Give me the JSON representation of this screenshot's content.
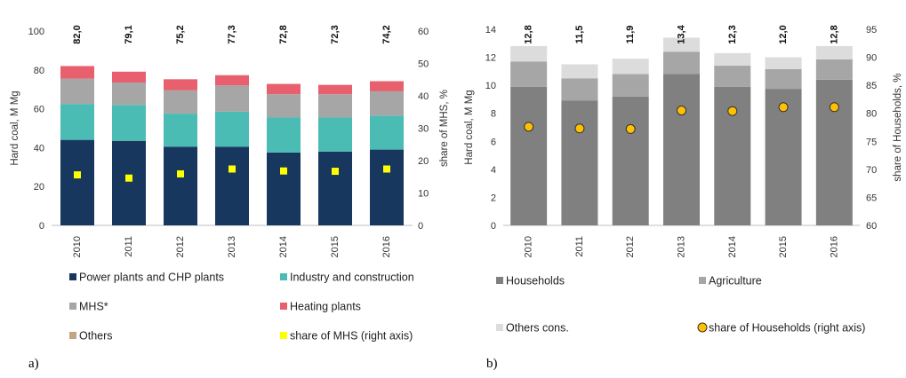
{
  "panels": {
    "a": {
      "label": "a)"
    },
    "b": {
      "label": "b)"
    }
  },
  "chart_data": [
    {
      "type": "bar",
      "stacked": true,
      "categories": [
        "2010",
        "2011",
        "2012",
        "2013",
        "2014",
        "2015",
        "2016"
      ],
      "ylabel": "Hard coal, M Mg",
      "ylim": [
        0,
        100
      ],
      "yticks": [
        "0",
        "20",
        "40",
        "60",
        "80",
        "100"
      ],
      "y2label": "share of MHS, %",
      "y2lim": [
        0,
        60
      ],
      "y2ticks": [
        "0",
        "10",
        "20",
        "30",
        "40",
        "50",
        "60"
      ],
      "series": [
        {
          "name": "Power plants and CHP plants",
          "color": "#17375e",
          "values": [
            44.0,
            43.5,
            40.5,
            40.5,
            37.5,
            38.0,
            39.0
          ]
        },
        {
          "name": "Industry and construction",
          "color": "#4bbcb4",
          "values": [
            18.5,
            18.5,
            17.0,
            18.0,
            18.0,
            17.5,
            17.5
          ]
        },
        {
          "name": "MHS*",
          "color": "#a6a6a6",
          "values": [
            13.0,
            11.5,
            12.0,
            13.5,
            12.0,
            12.0,
            12.5
          ]
        },
        {
          "name": "Heating plants",
          "color": "#e8606e",
          "values": [
            6.5,
            5.6,
            5.7,
            5.3,
            5.3,
            4.8,
            5.2
          ]
        },
        {
          "name": "Others",
          "color": "#c4a484",
          "values": [
            0,
            0,
            0,
            0,
            0,
            0,
            0
          ]
        }
      ],
      "totals": [
        "82,0",
        "79,1",
        "75,2",
        "77,3",
        "72,8",
        "72,3",
        "74,2"
      ],
      "line_series": {
        "name": "share of MHS (right axis)",
        "color": "#ffff00",
        "marker": "square",
        "axis": "right",
        "values": [
          15.6,
          14.6,
          15.9,
          17.4,
          16.8,
          16.7,
          17.4
        ]
      },
      "legend": [
        {
          "name": "Power plants and CHP plants",
          "color": "#17375e",
          "marker": "square"
        },
        {
          "name": "Industry and construction",
          "color": "#4bbcb4",
          "marker": "square"
        },
        {
          "name": "MHS*",
          "color": "#a6a6a6",
          "marker": "square"
        },
        {
          "name": "Heating plants",
          "color": "#e8606e",
          "marker": "square"
        },
        {
          "name": "Others",
          "color": "#c4a484",
          "marker": "square"
        },
        {
          "name": "share of MHS (right axis)",
          "color": "#ffff00",
          "marker": "square"
        }
      ],
      "legend_position": "bottom",
      "grid": false
    },
    {
      "type": "bar",
      "stacked": true,
      "categories": [
        "2010",
        "2011",
        "2012",
        "2013",
        "2014",
        "2015",
        "2016"
      ],
      "ylabel": "Hard coal, M Mg",
      "ylim": [
        0,
        14
      ],
      "yticks": [
        "0",
        "2",
        "4",
        "6",
        "8",
        "10",
        "12",
        "14"
      ],
      "y2label": "share of Households, %",
      "y2lim": [
        60,
        95
      ],
      "y2ticks": [
        "60",
        "65",
        "70",
        "75",
        "80",
        "85",
        "90",
        "95"
      ],
      "series": [
        {
          "name": "Households",
          "color": "#808080",
          "values": [
            9.9,
            8.9,
            9.2,
            10.8,
            9.9,
            9.75,
            10.4
          ]
        },
        {
          "name": "Agriculture",
          "color": "#a6a6a6",
          "values": [
            1.8,
            1.6,
            1.6,
            1.6,
            1.5,
            1.4,
            1.45
          ]
        },
        {
          "name": "Others cons.",
          "color": "#dcdcdc",
          "values": [
            1.1,
            1.0,
            1.1,
            1.0,
            0.9,
            0.85,
            0.95
          ]
        }
      ],
      "totals": [
        "12,8",
        "11,5",
        "11,9",
        "13,4",
        "12,3",
        "12,0",
        "12,8"
      ],
      "line_series": {
        "name": "share of Households (right axis)",
        "color": "#ffc000",
        "marker": "circle",
        "axis": "right",
        "values": [
          77.6,
          77.3,
          77.2,
          80.5,
          80.4,
          81.1,
          81.1
        ]
      },
      "legend": [
        {
          "name": "Households",
          "color": "#808080",
          "marker": "square"
        },
        {
          "name": "Agriculture",
          "color": "#a6a6a6",
          "marker": "square"
        },
        {
          "name": "Others cons.",
          "color": "#dcdcdc",
          "marker": "square"
        },
        {
          "name": "share of Households (right axis)",
          "color": "#ffc000",
          "marker": "circle"
        }
      ],
      "legend_position": "bottom",
      "grid": false
    }
  ]
}
